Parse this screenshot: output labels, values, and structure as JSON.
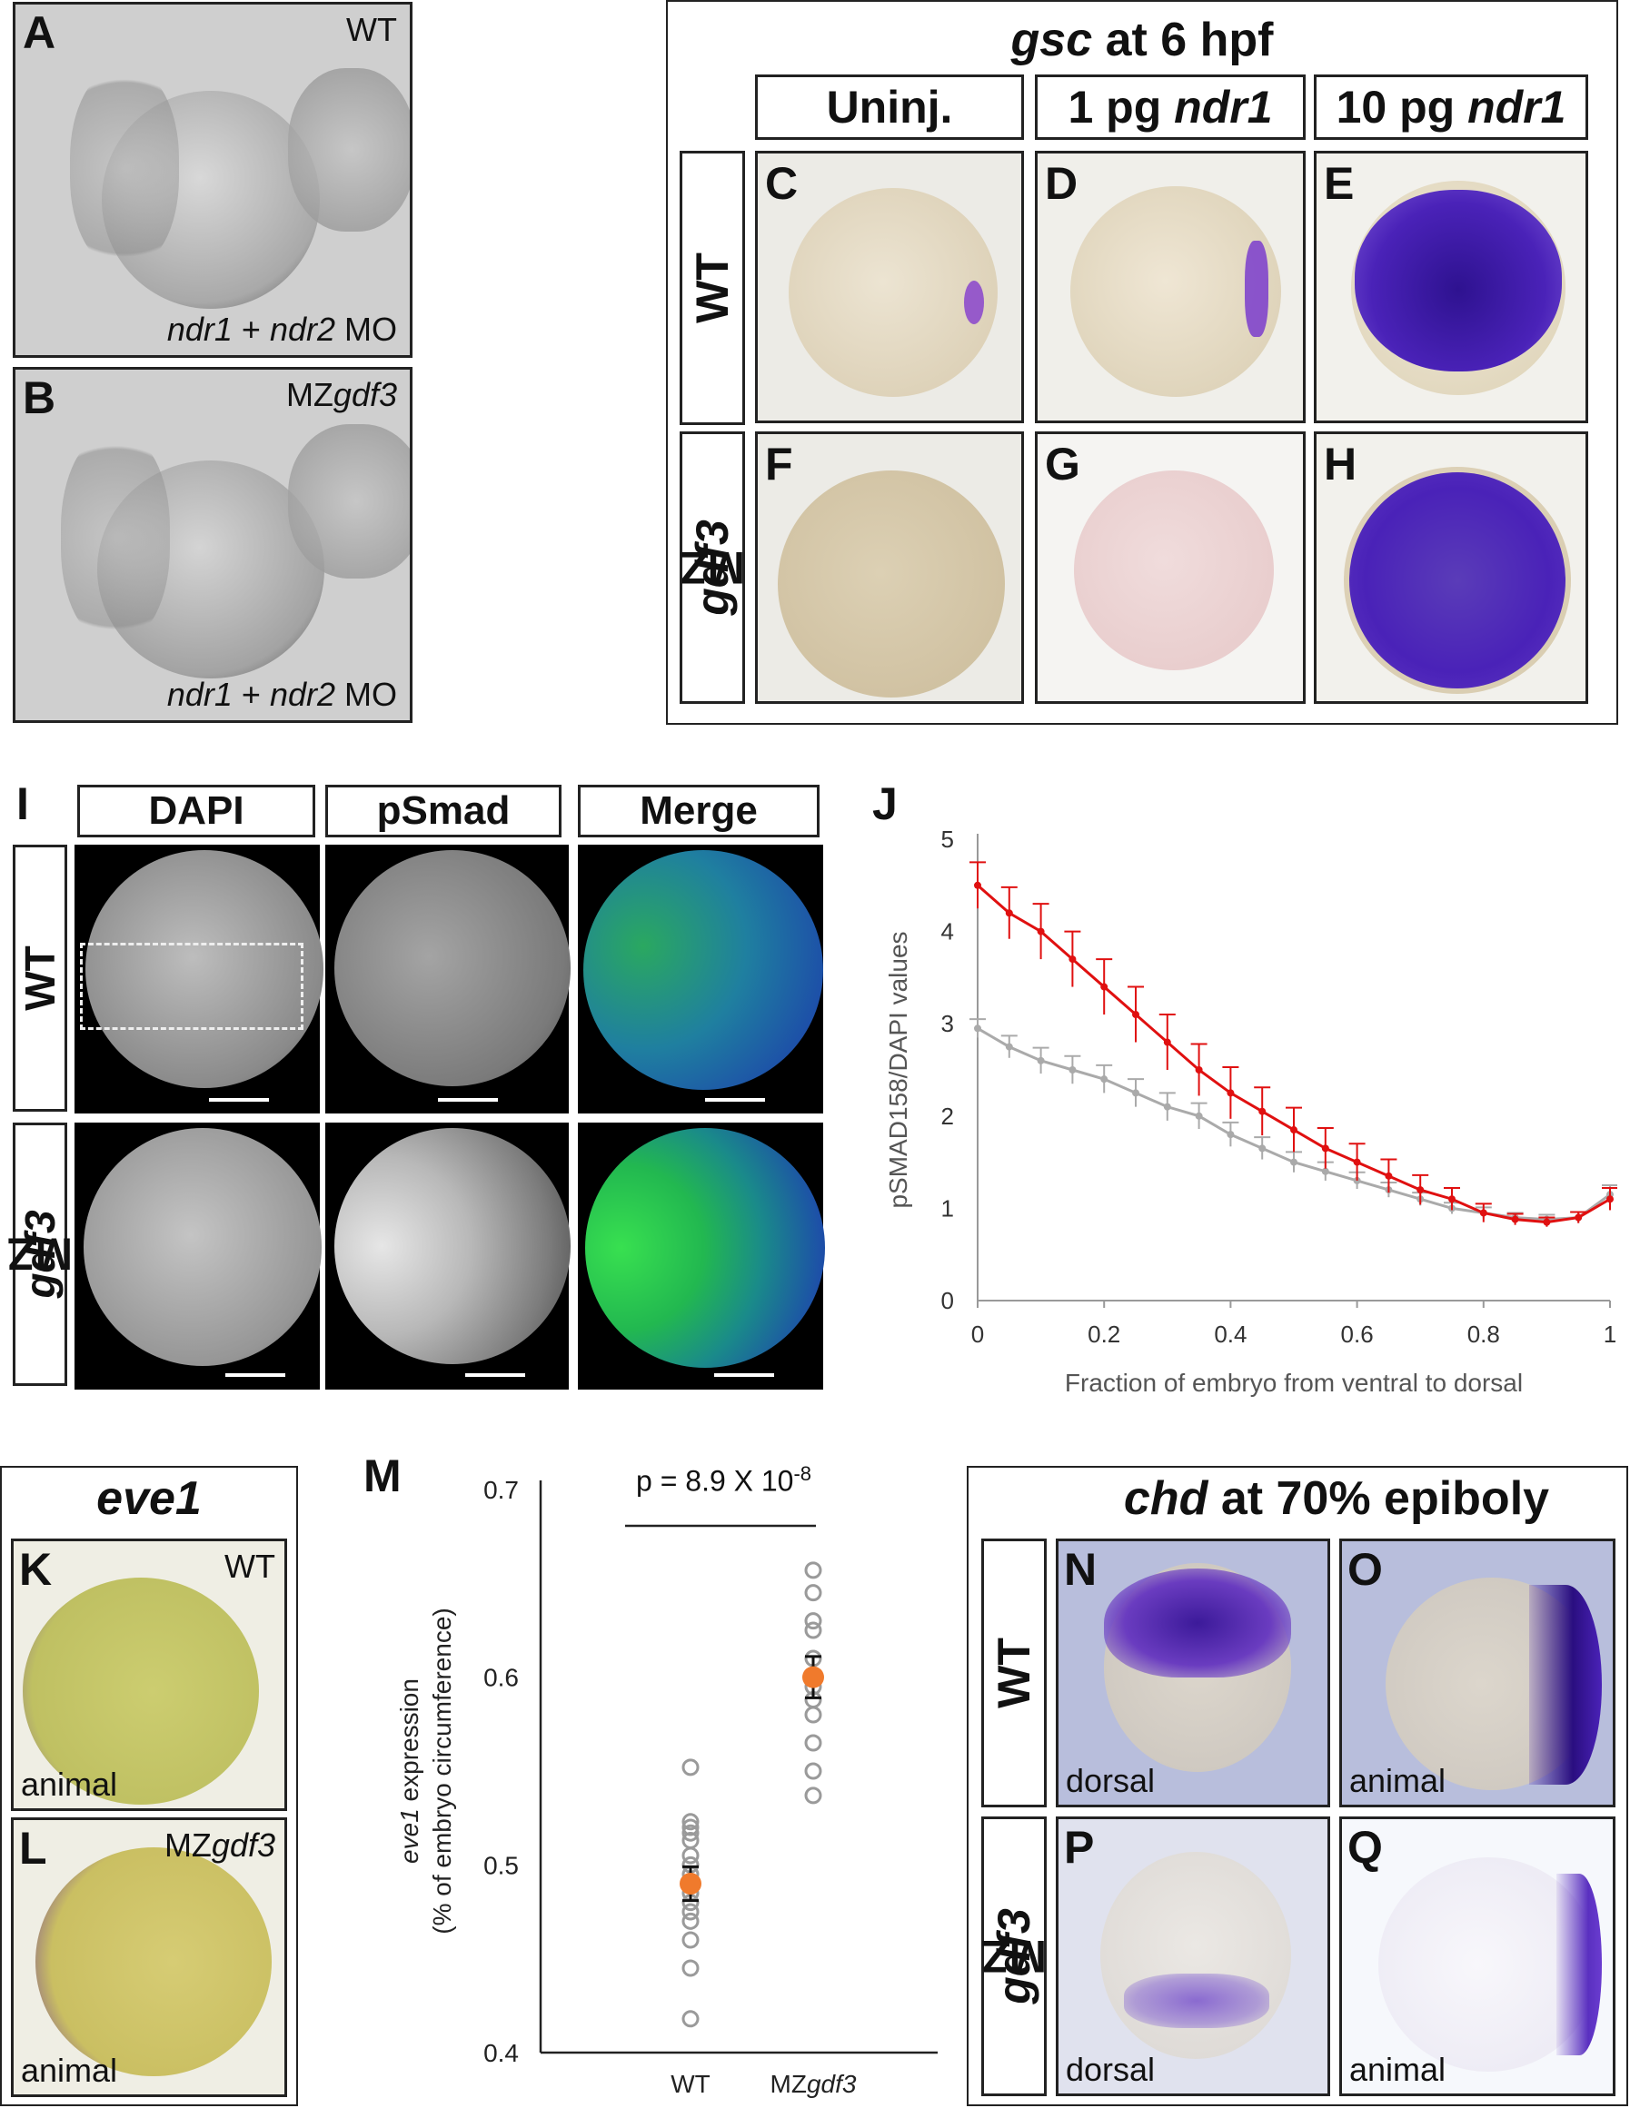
{
  "panelA": {
    "letter": "A",
    "tag": "WT",
    "note_a": "ndr1",
    "note_b": " + ",
    "note_c": "ndr2",
    "note_d": " MO"
  },
  "panelB": {
    "letter": "B",
    "tag_a": "MZ",
    "tag_b": "gdf3",
    "note_a": "ndr1",
    "note_b": " + ",
    "note_c": "ndr2",
    "note_d": " MO"
  },
  "gsc": {
    "title_a": "gsc",
    "title_b": " at 6 hpf",
    "columns": [
      {
        "plain": "Uninj.",
        "italic": ""
      },
      {
        "plain": "1 pg ",
        "italic": "ndr1"
      },
      {
        "plain": "10 pg ",
        "italic": "ndr1"
      }
    ],
    "row_wt": "WT",
    "row_mz_a": "MZ",
    "row_mz_b": "gdf3",
    "letters": [
      "C",
      "D",
      "E",
      "F",
      "G",
      "H"
    ]
  },
  "panelI": {
    "letter": "I",
    "columns": [
      "DAPI",
      "pSmad",
      "Merge"
    ],
    "row_wt": "WT",
    "row_mz_a": "MZ",
    "row_mz_b": "gdf3"
  },
  "panelJ": {
    "letter": "J"
  },
  "eve1": {
    "title": "eve1",
    "letterK": "K",
    "tagK": "WT",
    "viewK": "animal",
    "letterL": "L",
    "tagL_a": "MZ",
    "tagL_b": "gdf3",
    "viewL": "animal"
  },
  "panelM": {
    "letter": "M",
    "p_text": "p = 8.9 X 10",
    "p_exp": "-8"
  },
  "chd": {
    "title_a": "chd",
    "title_b": " at 70% epiboly",
    "row_wt": "WT",
    "row_mz_a": "MZ",
    "row_mz_b": "gdf3",
    "letters": [
      "N",
      "O",
      "P",
      "Q"
    ],
    "views": [
      "dorsal",
      "animal",
      "dorsal",
      "animal"
    ]
  },
  "colors": {
    "wt_series": "#aaaaaa",
    "mz_series": "#e01010",
    "mean_dot": "#f07a2c",
    "stain": "#4a22b8"
  },
  "chart_data": [
    {
      "type": "line",
      "xlabel": "Fraction of embryo from ventral to dorsal",
      "ylabel": "pSMAD158/DAPI values",
      "xlim": [
        0,
        1
      ],
      "ylim": [
        0,
        5
      ],
      "xticks": [
        "0",
        "0.2",
        "0.4",
        "0.6",
        "0.8",
        "1"
      ],
      "yticks": [
        "0",
        "1",
        "2",
        "3",
        "4",
        "5"
      ],
      "grid": false,
      "series": [
        {
          "color": "#e01010",
          "x": [
            0.0,
            0.05,
            0.1,
            0.15,
            0.2,
            0.25,
            0.3,
            0.35,
            0.4,
            0.45,
            0.5,
            0.55,
            0.6,
            0.65,
            0.7,
            0.75,
            0.8,
            0.85,
            0.9,
            0.95,
            1.0
          ],
          "y": [
            4.5,
            4.2,
            4.0,
            3.7,
            3.4,
            3.1,
            2.8,
            2.5,
            2.25,
            2.05,
            1.85,
            1.65,
            1.5,
            1.35,
            1.2,
            1.1,
            0.95,
            0.88,
            0.85,
            0.9,
            1.1
          ],
          "err": [
            0.25,
            0.28,
            0.3,
            0.3,
            0.3,
            0.3,
            0.3,
            0.28,
            0.28,
            0.26,
            0.24,
            0.22,
            0.2,
            0.18,
            0.16,
            0.12,
            0.1,
            0.06,
            0.05,
            0.06,
            0.12
          ]
        },
        {
          "color": "#aaaaaa",
          "x": [
            0.0,
            0.05,
            0.1,
            0.15,
            0.2,
            0.25,
            0.3,
            0.35,
            0.4,
            0.45,
            0.5,
            0.55,
            0.6,
            0.65,
            0.7,
            0.75,
            0.8,
            0.85,
            0.9,
            0.95,
            1.0
          ],
          "y": [
            2.95,
            2.75,
            2.6,
            2.5,
            2.4,
            2.25,
            2.1,
            2.0,
            1.8,
            1.65,
            1.5,
            1.4,
            1.3,
            1.2,
            1.1,
            1.0,
            0.95,
            0.9,
            0.88,
            0.9,
            1.15
          ],
          "err": [
            0.1,
            0.12,
            0.14,
            0.15,
            0.15,
            0.15,
            0.15,
            0.14,
            0.13,
            0.12,
            0.11,
            0.1,
            0.09,
            0.08,
            0.07,
            0.06,
            0.06,
            0.05,
            0.05,
            0.06,
            0.1
          ]
        }
      ]
    },
    {
      "type": "scatter",
      "xlabel": "",
      "ylabel_a": "eve1",
      "ylabel_b": " expression",
      "ylabel_c": "(% of embryo circumference)",
      "categories": [
        "WT",
        "MZgdf3"
      ],
      "category_label_parts": [
        [
          "WT",
          ""
        ],
        [
          "MZ",
          "gdf3"
        ]
      ],
      "ylim": [
        0.4,
        0.7
      ],
      "yticks": [
        "0.4",
        "0.5",
        "0.6",
        "0.7"
      ],
      "series": [
        {
          "category": "WT",
          "values": [
            0.552,
            0.523,
            0.52,
            0.517,
            0.513,
            0.505,
            0.5,
            0.495,
            0.49,
            0.485,
            0.48,
            0.475,
            0.47,
            0.46,
            0.445,
            0.418
          ],
          "mean": 0.49,
          "sem": 0.009
        },
        {
          "category": "MZgdf3",
          "values": [
            0.657,
            0.645,
            0.63,
            0.625,
            0.61,
            0.6,
            0.595,
            0.588,
            0.58,
            0.565,
            0.55,
            0.537
          ],
          "mean": 0.6,
          "sem": 0.011
        }
      ]
    }
  ]
}
